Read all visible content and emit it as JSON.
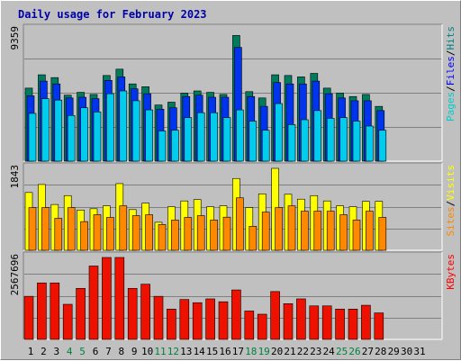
{
  "chart_data": {
    "type": "bar",
    "title": "Daily usage for February 2023",
    "categories": [
      "1",
      "2",
      "3",
      "4",
      "5",
      "6",
      "7",
      "8",
      "9",
      "10",
      "11",
      "12",
      "13",
      "14",
      "15",
      "16",
      "17",
      "18",
      "19",
      "20",
      "21",
      "22",
      "23",
      "24",
      "25",
      "26",
      "27",
      "28",
      "29",
      "30",
      "31"
    ],
    "weekend_days": [
      4,
      5,
      11,
      12,
      18,
      19,
      25,
      26
    ],
    "panels": [
      {
        "name": "hits-files-pages",
        "max_label": "9359",
        "ymax": 9359,
        "legend": [
          {
            "label": "Pages",
            "color": "#00cccc"
          },
          {
            "label": "Files",
            "color": "#0000ff"
          },
          {
            "label": "Hits",
            "color": "#008080"
          }
        ],
        "series": [
          {
            "name": "Hits",
            "color": "#007c5c",
            "values": [
              5200,
              6150,
              5950,
              4700,
              4900,
              4750,
              6100,
              6550,
              5500,
              5300,
              4000,
              4200,
              4850,
              5000,
              4900,
              4750,
              8950,
              4950,
              4500,
              6150,
              6100,
              6000,
              6250,
              5200,
              4850,
              4600,
              4750,
              3900
            ]
          },
          {
            "name": "Files",
            "color": "#0033ee",
            "values": [
              4650,
              5700,
              5500,
              4500,
              4550,
              4450,
              5750,
              6000,
              5150,
              4800,
              3700,
              3800,
              4600,
              4700,
              4550,
              4550,
              8100,
              4600,
              3900,
              5600,
              5500,
              5500,
              5700,
              4800,
              4500,
              4300,
              4300,
              3600
            ]
          },
          {
            "name": "Pages",
            "color": "#00ccee",
            "values": [
              3400,
              4450,
              4350,
              3250,
              3800,
              3500,
              4800,
              5000,
              4300,
              3650,
              2150,
              2200,
              3100,
              3450,
              3450,
              3100,
              3650,
              2850,
              2200,
              4100,
              2600,
              2950,
              3600,
              3050,
              3100,
              2850,
              2500,
              2200
            ]
          }
        ]
      },
      {
        "name": "visits-sites",
        "max_label": "1843",
        "ymax": 1843,
        "legend": [
          {
            "label": "Sites",
            "color": "#ff8800"
          },
          {
            "label": "Visits",
            "color": "#ffff00"
          }
        ],
        "series": [
          {
            "name": "Visits",
            "color": "#ffff00",
            "values": [
              1300,
              1480,
              1030,
              1230,
              905,
              935,
              1000,
              1500,
              915,
              1060,
              630,
              980,
              1110,
              1140,
              980,
              1000,
              1615,
              960,
              1270,
              1843,
              1260,
              1150,
              1230,
              1110,
              1000,
              980,
              1100,
              1100
            ]
          },
          {
            "name": "Sites",
            "color": "#ff8800",
            "values": [
              960,
              960,
              720,
              960,
              645,
              800,
              740,
              1000,
              780,
              800,
              580,
              680,
              740,
              780,
              680,
              745,
              1180,
              540,
              860,
              960,
              1000,
              880,
              880,
              880,
              800,
              680,
              880,
              740
            ]
          }
        ]
      },
      {
        "name": "kbytes",
        "max_label": "2567696",
        "ymax": 2567696,
        "legend": [
          {
            "label": "KBytes",
            "color": "#ff0000"
          }
        ],
        "series": [
          {
            "name": "KBytes",
            "color": "#ee1100",
            "values": [
              1350000,
              1770000,
              1770000,
              1100000,
              1600000,
              2300000,
              2567696,
              2567696,
              1600000,
              1730000,
              1350000,
              950000,
              1250000,
              1150000,
              1270000,
              1180000,
              1550000,
              890000,
              790000,
              1500000,
              1120000,
              1270000,
              1050000,
              1050000,
              950000,
              950000,
              1070000,
              830000
            ]
          }
        ]
      }
    ]
  }
}
